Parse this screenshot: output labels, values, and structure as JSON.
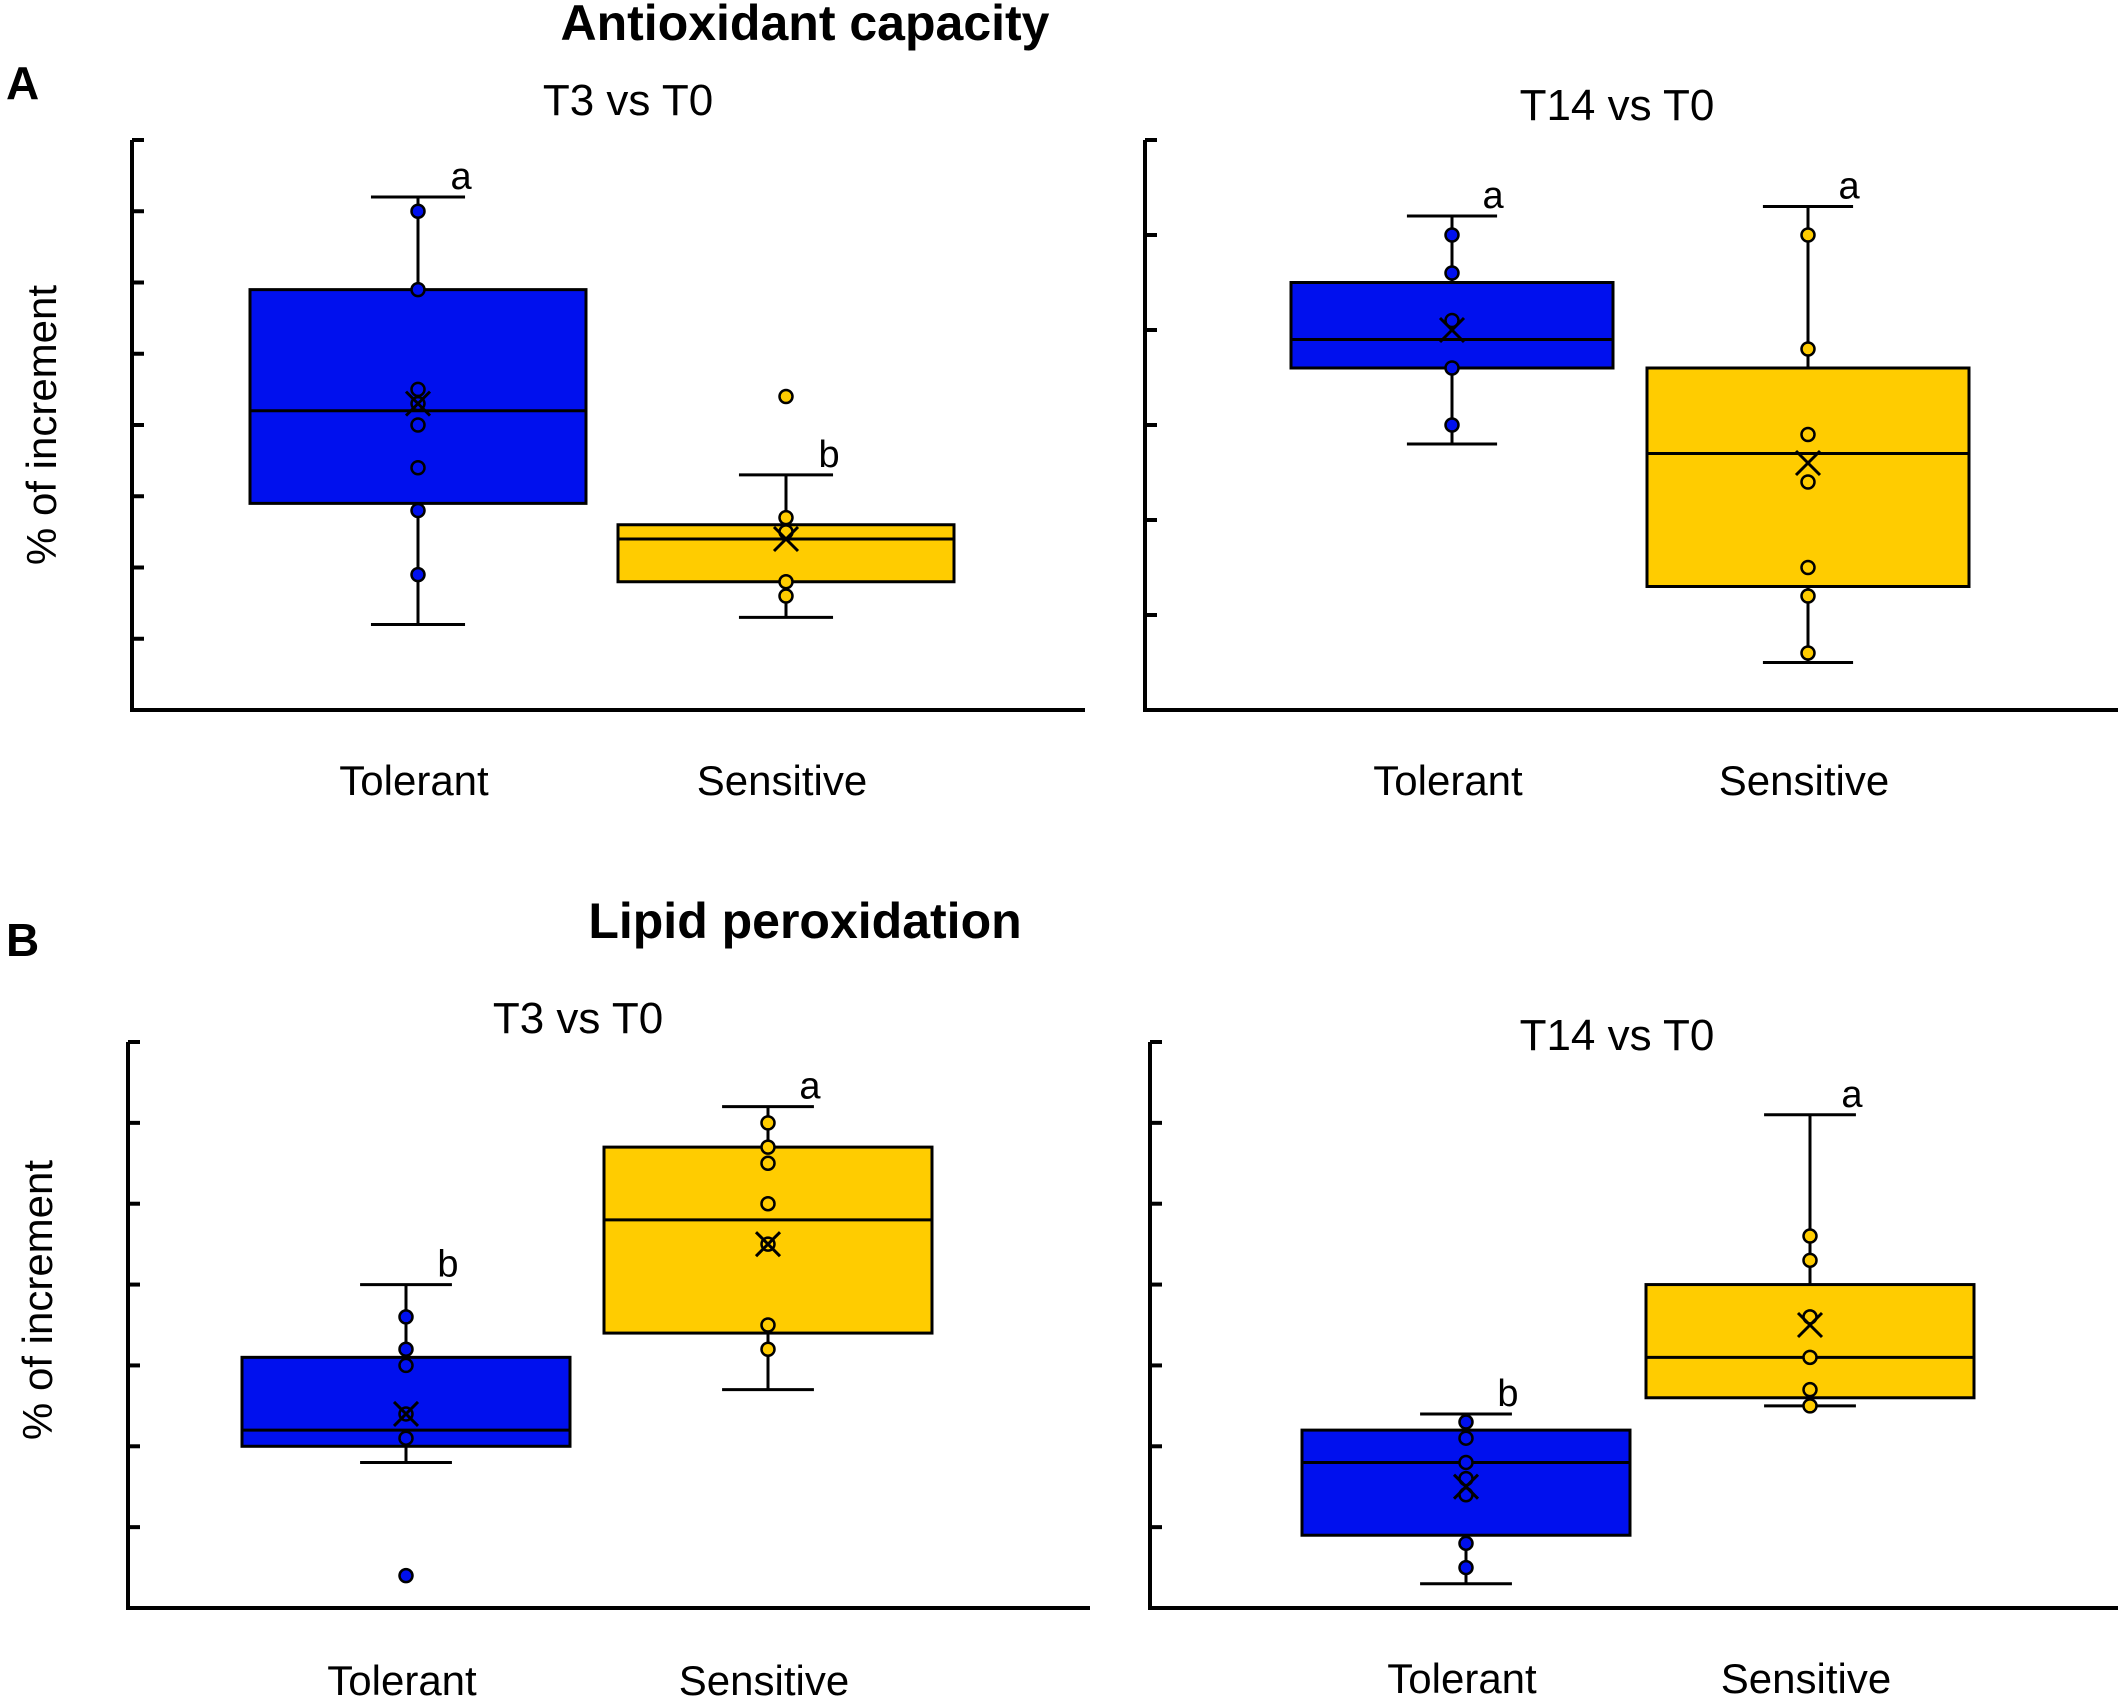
{
  "figure": {
    "sections": [
      {
        "letter": "A",
        "title": "Antioxidant capacity"
      },
      {
        "letter": "B",
        "title": "Lipid peroxidation"
      }
    ],
    "ylabel": "% of increment",
    "categories": [
      "Tolerant",
      "Sensitive"
    ],
    "colors": {
      "Tolerant": "#0010ee",
      "Sensitive": "#ffcc00"
    }
  },
  "chart_data": [
    {
      "type": "box",
      "section": "Antioxidant capacity",
      "title": "T3 vs T0",
      "ylabel": "% of increment",
      "categories": [
        "Tolerant",
        "Sensitive"
      ],
      "ylim": [
        0,
        8
      ],
      "yticks": [
        0,
        1,
        2,
        3,
        4,
        5,
        6,
        7,
        8
      ],
      "boxes": [
        {
          "name": "Tolerant",
          "whisker_low": 1.2,
          "q1": 2.9,
          "median": 4.2,
          "q3": 5.9,
          "whisker_high": 7.2,
          "mean": 4.3,
          "points": [
            7.0,
            5.9,
            4.5,
            4.3,
            4.0,
            3.4,
            2.8,
            1.9
          ],
          "sig": "a"
        },
        {
          "name": "Sensitive",
          "whisker_low": 1.3,
          "q1": 1.8,
          "median": 2.4,
          "q3": 2.6,
          "whisker_high": 3.3,
          "mean": 2.4,
          "points": [
            4.4,
            2.7,
            2.5,
            1.8,
            1.6
          ],
          "sig": "b"
        }
      ]
    },
    {
      "type": "box",
      "section": "Antioxidant capacity",
      "title": "T14 vs T0",
      "ylabel": "% of increment",
      "categories": [
        "Tolerant",
        "Sensitive"
      ],
      "ylim": [
        0,
        6
      ],
      "yticks": [
        0,
        1,
        2,
        3,
        4,
        5,
        6
      ],
      "boxes": [
        {
          "name": "Tolerant",
          "whisker_low": 2.8,
          "q1": 3.6,
          "median": 3.9,
          "q3": 4.5,
          "whisker_high": 5.2,
          "mean": 4.0,
          "points": [
            5.0,
            4.6,
            4.1,
            3.6,
            3.0
          ],
          "sig": "a"
        },
        {
          "name": "Sensitive",
          "whisker_low": 0.5,
          "q1": 1.3,
          "median": 2.7,
          "q3": 3.6,
          "whisker_high": 5.3,
          "mean": 2.6,
          "points": [
            5.0,
            3.8,
            2.9,
            2.4,
            1.5,
            1.2,
            0.6
          ],
          "sig": "a"
        }
      ]
    },
    {
      "type": "box",
      "section": "Lipid peroxidation",
      "title": "T3 vs T0",
      "ylabel": "% of increment",
      "categories": [
        "Tolerant",
        "Sensitive"
      ],
      "ylim": [
        0,
        7
      ],
      "yticks": [
        0,
        1,
        2,
        3,
        4,
        5,
        6,
        7
      ],
      "boxes": [
        {
          "name": "Tolerant",
          "whisker_low": 1.8,
          "q1": 2.0,
          "median": 2.2,
          "q3": 3.1,
          "whisker_high": 4.0,
          "mean": 2.4,
          "points": [
            3.6,
            3.2,
            3.0,
            2.4,
            2.1,
            0.4
          ],
          "sig": "b"
        },
        {
          "name": "Sensitive",
          "whisker_low": 2.7,
          "q1": 3.4,
          "median": 4.8,
          "q3": 5.7,
          "whisker_high": 6.2,
          "mean": 4.5,
          "points": [
            6.0,
            5.7,
            5.5,
            5.0,
            4.5,
            3.5,
            3.2
          ],
          "sig": "a"
        }
      ]
    },
    {
      "type": "box",
      "section": "Lipid peroxidation",
      "title": "T14 vs T0",
      "ylabel": "% of increment",
      "categories": [
        "Tolerant",
        "Sensitive"
      ],
      "ylim": [
        0,
        7
      ],
      "yticks": [
        0,
        1,
        2,
        3,
        4,
        5,
        6,
        7
      ],
      "boxes": [
        {
          "name": "Tolerant",
          "whisker_low": 0.3,
          "q1": 0.9,
          "median": 1.8,
          "q3": 2.2,
          "whisker_high": 2.4,
          "mean": 1.5,
          "points": [
            2.3,
            2.1,
            1.8,
            1.6,
            1.4,
            0.8,
            0.5
          ],
          "sig": "b"
        },
        {
          "name": "Sensitive",
          "whisker_low": 2.5,
          "q1": 2.6,
          "median": 3.1,
          "q3": 4.0,
          "whisker_high": 6.1,
          "mean": 3.5,
          "points": [
            4.6,
            4.3,
            3.6,
            3.1,
            2.7,
            2.5
          ],
          "sig": "a"
        }
      ]
    }
  ]
}
